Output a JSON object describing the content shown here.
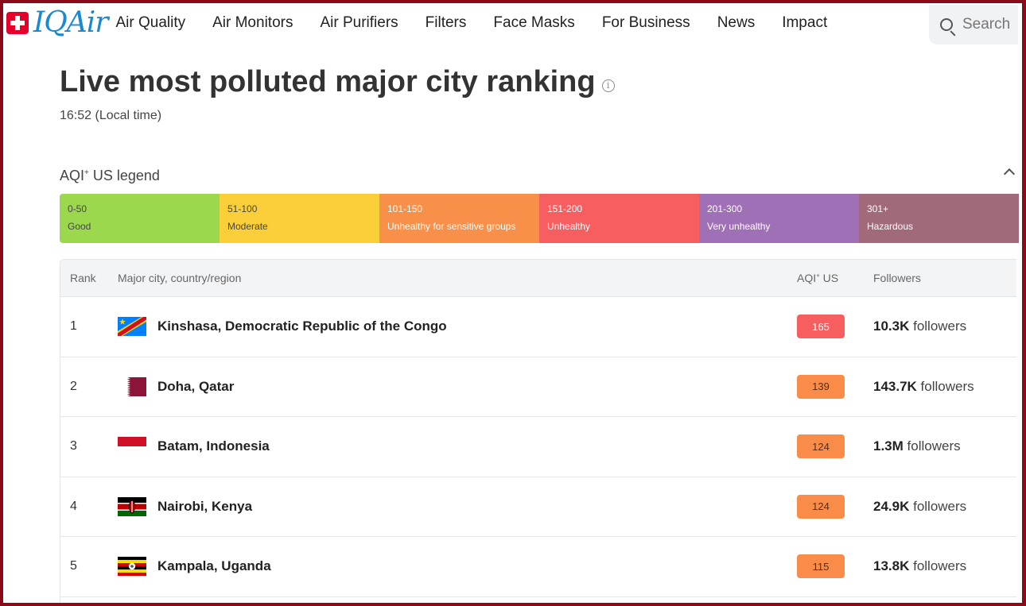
{
  "header": {
    "brand": "IQAir",
    "nav": [
      "Air Quality",
      "Air Monitors",
      "Air Purifiers",
      "Filters",
      "Face Masks",
      "For Business",
      "News",
      "Impact"
    ],
    "search_placeholder": "Search"
  },
  "page": {
    "title": "Live most polluted major city ranking",
    "local_time": "16:52 (Local time)"
  },
  "legend": {
    "title": "AQI",
    "title_sup": "+",
    "title_suffix": " US legend",
    "segments": [
      {
        "range": "0-50",
        "label": "Good",
        "color": "#9cd84e"
      },
      {
        "range": "51-100",
        "label": "Moderate",
        "color": "#facf39"
      },
      {
        "range": "101-150",
        "label": "Unhealthy for sensitive groups",
        "color": "#f99049"
      },
      {
        "range": "151-200",
        "label": "Unhealthy",
        "color": "#f65e5f"
      },
      {
        "range": "201-300",
        "label": "Very unhealthy",
        "color": "#a070b6"
      },
      {
        "range": "301+",
        "label": "Hazardous",
        "color": "#a06a7b"
      }
    ]
  },
  "table": {
    "headers": {
      "rank": "Rank",
      "city": "Major city, country/region",
      "aqi": "AQI",
      "aqi_sup": "+",
      "aqi_suffix": " US",
      "followers": "Followers"
    },
    "rows": [
      {
        "rank": "1",
        "city": "Kinshasa, Democratic Republic of the Congo",
        "aqi": "165",
        "followers_count": "10.3K",
        "followers_label": " followers",
        "flag": "cd-flag"
      },
      {
        "rank": "2",
        "city": "Doha, Qatar",
        "aqi": "139",
        "followers_count": "143.7K",
        "followers_label": " followers",
        "flag": "qa-flag"
      },
      {
        "rank": "3",
        "city": "Batam, Indonesia",
        "aqi": "124",
        "followers_count": "1.3M",
        "followers_label": " followers",
        "flag": "id-flag"
      },
      {
        "rank": "4",
        "city": "Nairobi, Kenya",
        "aqi": "124",
        "followers_count": "24.9K",
        "followers_label": " followers",
        "flag": "ke-flag"
      },
      {
        "rank": "5",
        "city": "Kampala, Uganda",
        "aqi": "115",
        "followers_count": "13.8K",
        "followers_label": " followers",
        "flag": "ug-flag"
      }
    ]
  }
}
